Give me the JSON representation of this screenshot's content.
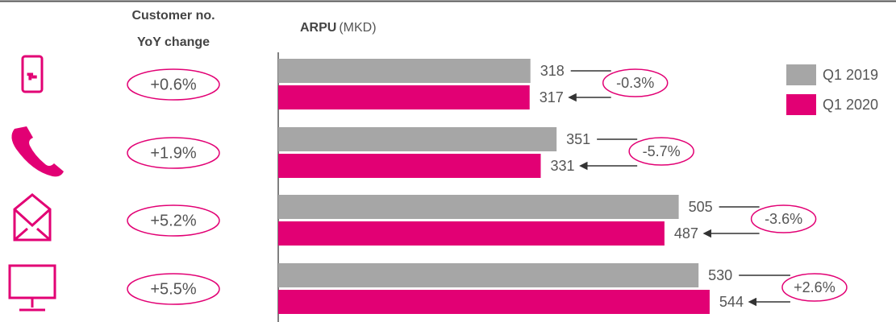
{
  "chart_data": {
    "type": "bar",
    "orientation": "horizontal",
    "title": "ARPU",
    "subtitle": "(MKD)",
    "categories": [
      null,
      null,
      null,
      null
    ],
    "series": [
      {
        "name": "Q1 2019",
        "color": "#a6a6a6",
        "values": [
          318,
          351,
          505,
          530
        ]
      },
      {
        "name": "Q1 2020",
        "color": "#e20074",
        "values": [
          317,
          331,
          487,
          544
        ]
      }
    ],
    "annotations": [
      "-0.3%",
      "-5.7%",
      "-3.6%",
      "+2.6%"
    ],
    "xlim": [
      0,
      600
    ],
    "legend": "top-right",
    "customer_change": {
      "title": [
        "Customer no.",
        "YoY change"
      ],
      "labels": [
        "+0.6%",
        "+1.9%",
        "+5.2%",
        "+5.5%"
      ]
    }
  }
}
